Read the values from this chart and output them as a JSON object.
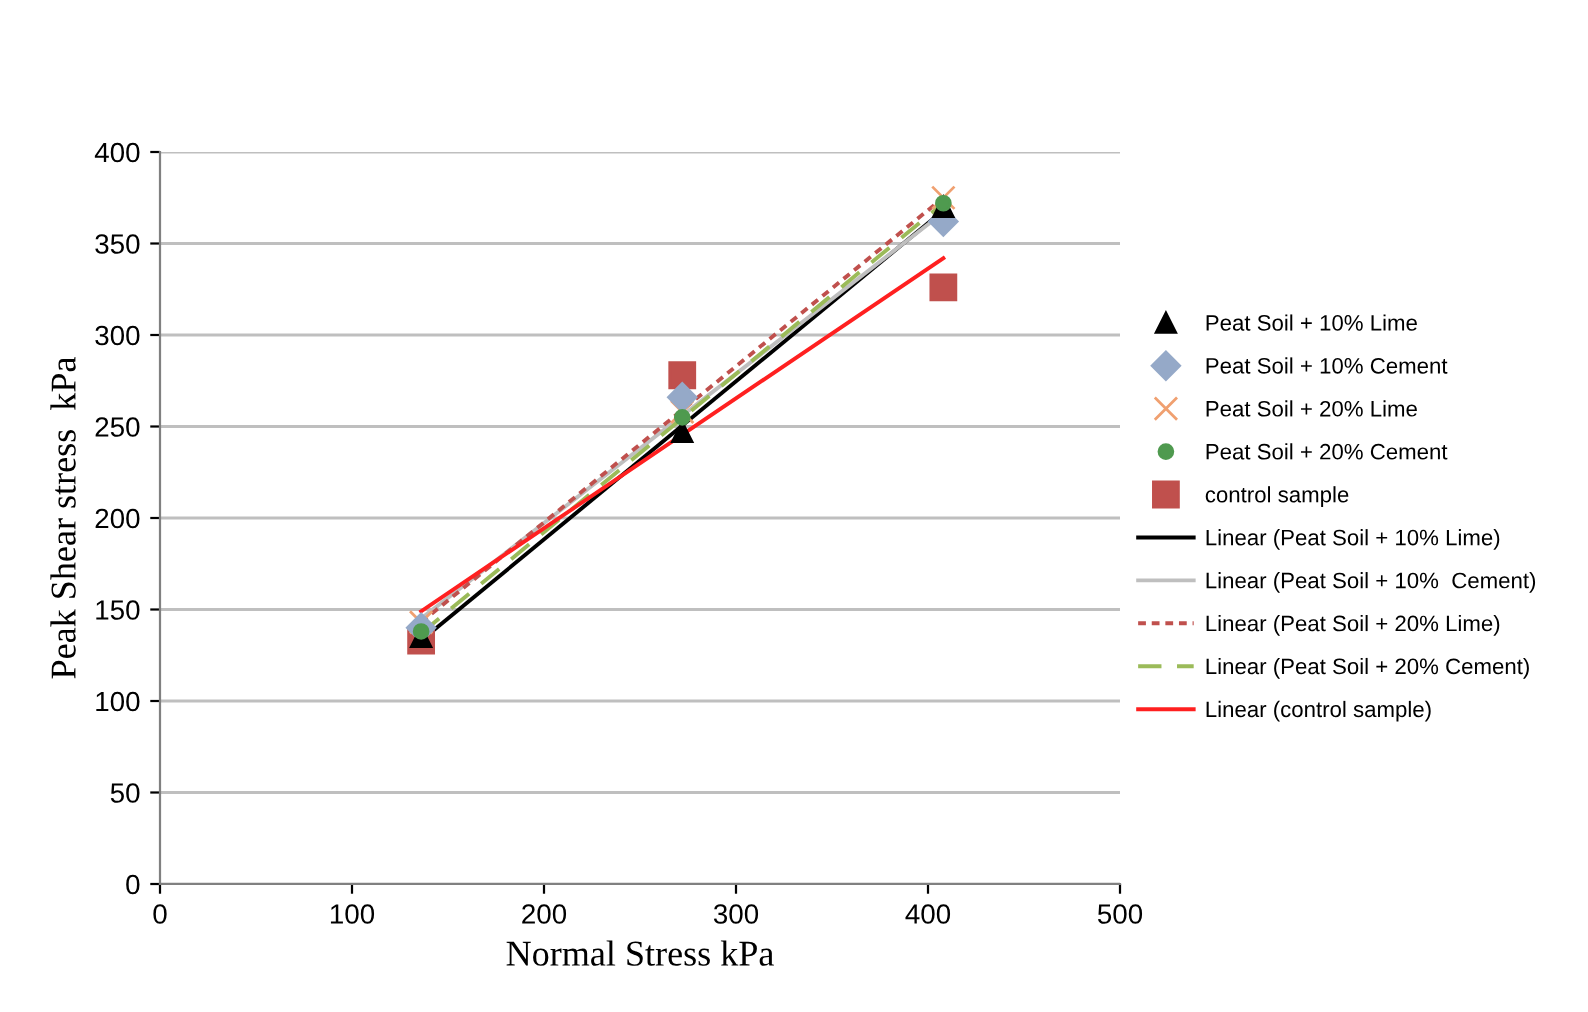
{
  "chart_data": {
    "type": "scatter",
    "xlabel": "Normal Stress kPa",
    "ylabel": "Peak Shear stress  kPa",
    "xlim": [
      0,
      500
    ],
    "ylim": [
      0,
      400
    ],
    "xticks": [
      0,
      100,
      200,
      300,
      400,
      500
    ],
    "yticks": [
      0,
      50,
      100,
      150,
      200,
      250,
      300,
      350,
      400
    ],
    "grid": "y",
    "legend": "right",
    "series": [
      {
        "name": "Peat Soil + 10% Lime",
        "marker": "triangle",
        "color": "#000000",
        "x": [
          136,
          272,
          408
        ],
        "values": [
          135,
          247,
          370
        ]
      },
      {
        "name": "Peat Soil + 10% Cement",
        "marker": "diamond",
        "color": "#95a9c8",
        "x": [
          136,
          272,
          408
        ],
        "values": [
          140,
          266,
          362
        ]
      },
      {
        "name": "Peat Soil + 20% Lime",
        "marker": "cross",
        "color": "#f0a070",
        "x": [
          136,
          272,
          408
        ],
        "values": [
          143,
          258,
          375
        ]
      },
      {
        "name": "Peat Soil + 20% Cement",
        "marker": "circle",
        "color": "#4f9a4f",
        "x": [
          136,
          272,
          408
        ],
        "values": [
          138,
          255,
          372
        ]
      },
      {
        "name": "control sample",
        "marker": "square",
        "color": "#c0504d",
        "x": [
          136,
          272,
          408
        ],
        "values": [
          133,
          278,
          326
        ]
      },
      {
        "name": "Linear (Peat Soil + 10% Lime)",
        "type": "line",
        "line_style": "solid",
        "color": "#000000",
        "x": [
          136,
          408
        ],
        "values": [
          133,
          368
        ]
      },
      {
        "name": "Linear (Peat Soil + 10%  Cement)",
        "type": "line",
        "line_style": "solid",
        "color": "#bfbfbf",
        "x": [
          136,
          408
        ],
        "values": [
          145,
          367
        ]
      },
      {
        "name": "Linear (Peat Soil + 20% Lime)",
        "type": "line",
        "line_style": "dotted",
        "color": "#c0504d",
        "x": [
          136,
          408
        ],
        "values": [
          143,
          375
        ]
      },
      {
        "name": "Linear (Peat Soil + 20% Cement)",
        "type": "line",
        "line_style": "dashed",
        "color": "#9bbb59",
        "x": [
          136,
          408
        ],
        "values": [
          137,
          372
        ]
      },
      {
        "name": "Linear (control sample)",
        "type": "line",
        "line_style": "solid",
        "color": "#ff2020",
        "x": [
          136,
          408
        ],
        "values": [
          149,
          342
        ]
      }
    ]
  }
}
